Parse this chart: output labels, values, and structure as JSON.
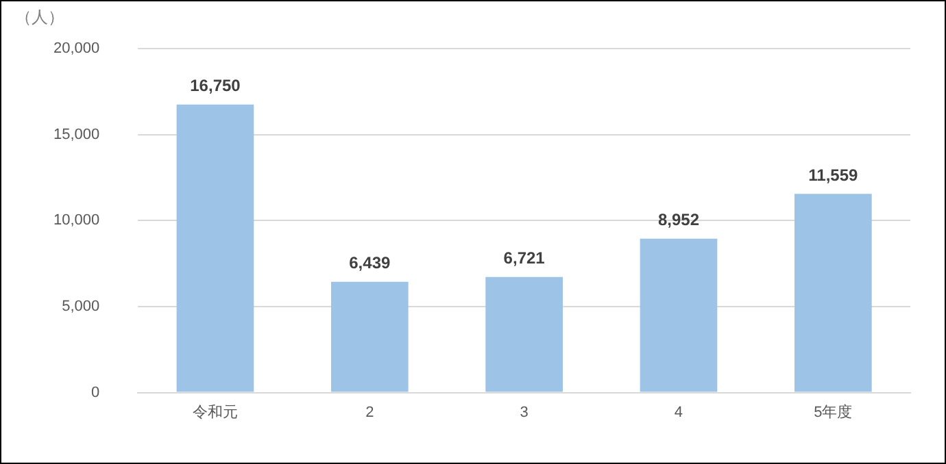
{
  "chart_data": {
    "type": "bar",
    "ylabel": "（人）",
    "categories": [
      "令和元",
      "2",
      "3",
      "4",
      "5年度"
    ],
    "values": [
      16750,
      6439,
      6721,
      8952,
      11559
    ],
    "color": "#9dc3e6",
    "ylim": [
      0,
      20000
    ],
    "yticks": [
      {
        "value": 0,
        "label": "0"
      },
      {
        "value": 5000,
        "label": "5,000"
      },
      {
        "value": 10000,
        "label": "10,000"
      },
      {
        "value": 15000,
        "label": "15,000"
      },
      {
        "value": 20000,
        "label": "20,000"
      }
    ],
    "grid": "y",
    "value_labels": [
      "16,750",
      "6,439",
      "6,721",
      "8,952",
      "11,559"
    ],
    "legend": false
  }
}
